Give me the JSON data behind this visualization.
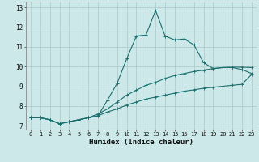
{
  "xlabel": "Humidex (Indice chaleur)",
  "background_color": "#cce8e8",
  "grid_color": "#b0cccc",
  "line_color": "#1a6e6e",
  "xlim": [
    -0.5,
    23.5
  ],
  "ylim": [
    6.8,
    13.3
  ],
  "xticks": [
    0,
    1,
    2,
    3,
    4,
    5,
    6,
    7,
    8,
    9,
    10,
    11,
    12,
    13,
    14,
    15,
    16,
    17,
    18,
    19,
    20,
    21,
    22,
    23
  ],
  "yticks": [
    7,
    8,
    9,
    10,
    11,
    12,
    13
  ],
  "series1_x": [
    0,
    1,
    2,
    3,
    4,
    5,
    6,
    7,
    8,
    9,
    10,
    11,
    12,
    13,
    14,
    15,
    16,
    17,
    18,
    19,
    20,
    21,
    22,
    23
  ],
  "series1_y": [
    7.4,
    7.4,
    7.3,
    7.1,
    7.2,
    7.3,
    7.4,
    7.5,
    8.3,
    9.15,
    10.4,
    11.55,
    11.6,
    12.85,
    11.55,
    11.35,
    11.4,
    11.1,
    10.2,
    9.9,
    9.95,
    9.95,
    9.85,
    9.65
  ],
  "series2_x": [
    0,
    1,
    2,
    3,
    4,
    5,
    6,
    7,
    8,
    9,
    10,
    11,
    12,
    13,
    14,
    15,
    16,
    17,
    18,
    19,
    20,
    21,
    22,
    23
  ],
  "series2_y": [
    7.4,
    7.4,
    7.3,
    7.1,
    7.2,
    7.3,
    7.4,
    7.6,
    7.85,
    8.2,
    8.55,
    8.8,
    9.05,
    9.2,
    9.4,
    9.55,
    9.65,
    9.75,
    9.82,
    9.9,
    9.95,
    9.97,
    9.97,
    9.95
  ],
  "series3_x": [
    0,
    1,
    2,
    3,
    4,
    5,
    6,
    7,
    8,
    9,
    10,
    11,
    12,
    13,
    14,
    15,
    16,
    17,
    18,
    19,
    20,
    21,
    22,
    23
  ],
  "series3_y": [
    7.4,
    7.4,
    7.3,
    7.1,
    7.2,
    7.3,
    7.4,
    7.5,
    7.7,
    7.85,
    8.05,
    8.2,
    8.35,
    8.45,
    8.55,
    8.65,
    8.75,
    8.82,
    8.9,
    8.95,
    9.0,
    9.05,
    9.1,
    9.6
  ]
}
